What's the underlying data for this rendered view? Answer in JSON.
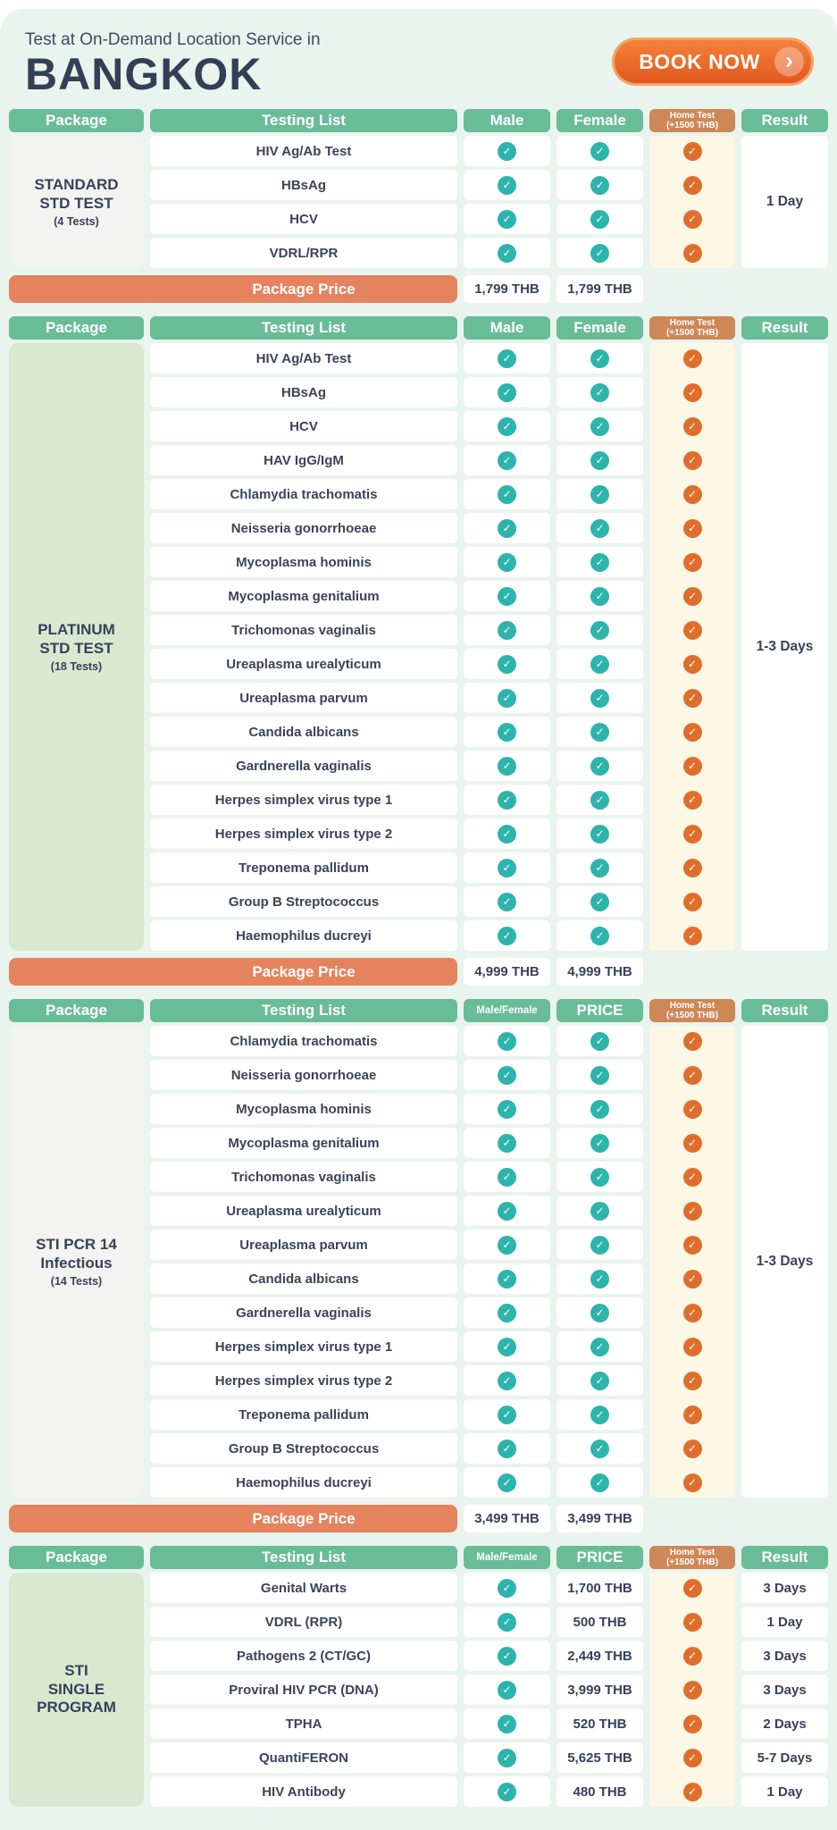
{
  "page": {
    "subtitle": "Test at On-Demand Location Service in",
    "city": "BANGKOK",
    "book_now": "BOOK NOW",
    "chevron_glyph": "›",
    "check_glyph": "✓",
    "colors": {
      "card_mint": "#E8F4ED",
      "header_green": "#69BC98",
      "home_header_orange": "#CE8756",
      "home_column_cream": "#FCF8E5",
      "check_teal": "#2DB4AC",
      "check_orange": "#DF6E2D",
      "price_bar_orange": "#E5835F",
      "package_gray": "#F3F4F1",
      "package_green": "#D9E9D0",
      "button_orange_top": "#F4823A",
      "button_orange_bottom": "#E2571F",
      "button_ring": "#F5A368",
      "text_dark": "#36415A"
    }
  },
  "tables": [
    {
      "id": "standard-std-test",
      "package": {
        "lines": [
          "STANDARD",
          "STD TEST"
        ],
        "count": "(4 Tests)",
        "style": "gray"
      },
      "headers": {
        "package": "Package",
        "testing": "Testing List",
        "col3": "Male",
        "col4": "Female",
        "home1": "Home Test",
        "home2": "(+1500 THB)",
        "result": "Result"
      },
      "col3_small": false,
      "col4_mode": "check",
      "result_mode": "merged",
      "result": "1 Day",
      "rows": [
        {
          "test": "HIV Ag/Ab Test"
        },
        {
          "test": "HBsAg"
        },
        {
          "test": "HCV"
        },
        {
          "test": "VDRL/RPR"
        }
      ],
      "price_row": {
        "label": "Package Price",
        "values": [
          "1,799 THB",
          "1,799 THB"
        ]
      }
    },
    {
      "id": "platinum-std-test",
      "package": {
        "lines": [
          "PLATINUM",
          "STD TEST"
        ],
        "count": "(18 Tests)",
        "style": "green"
      },
      "headers": {
        "package": "Package",
        "testing": "Testing List",
        "col3": "Male",
        "col4": "Female",
        "home1": "Home Test",
        "home2": "(+1500 THB)",
        "result": "Result"
      },
      "col3_small": false,
      "col4_mode": "check",
      "result_mode": "merged",
      "result": "1-3 Days",
      "rows": [
        {
          "test": "HIV Ag/Ab Test"
        },
        {
          "test": "HBsAg"
        },
        {
          "test": "HCV"
        },
        {
          "test": "HAV IgG/IgM"
        },
        {
          "test": "Chlamydia trachomatis"
        },
        {
          "test": "Neisseria gonorrhoeae"
        },
        {
          "test": "Mycoplasma hominis"
        },
        {
          "test": "Mycoplasma genitalium"
        },
        {
          "test": "Trichomonas vaginalis"
        },
        {
          "test": "Ureaplasma urealyticum"
        },
        {
          "test": "Ureaplasma parvum"
        },
        {
          "test": "Candida albicans"
        },
        {
          "test": "Gardnerella vaginalis"
        },
        {
          "test": "Herpes simplex virus type 1"
        },
        {
          "test": "Herpes simplex virus type 2"
        },
        {
          "test": "Treponema pallidum"
        },
        {
          "test": "Group B Streptococcus"
        },
        {
          "test": "Haemophilus ducreyi"
        }
      ],
      "price_row": {
        "label": "Package Price",
        "values": [
          "4,999 THB",
          "4,999 THB"
        ]
      }
    },
    {
      "id": "sti-pcr-14-infectious",
      "package": {
        "lines": [
          "STI PCR 14",
          "Infectious"
        ],
        "count": "(14 Tests)",
        "style": "gray"
      },
      "headers": {
        "package": "Package",
        "testing": "Testing List",
        "col3": "Male/Female",
        "col4": "PRICE",
        "home1": "Home Test",
        "home2": "(+1500 THB)",
        "result": "Result"
      },
      "col3_small": true,
      "col4_mode": "check",
      "result_mode": "merged",
      "result": "1-3 Days",
      "rows": [
        {
          "test": "Chlamydia trachomatis"
        },
        {
          "test": "Neisseria gonorrhoeae"
        },
        {
          "test": "Mycoplasma hominis"
        },
        {
          "test": "Mycoplasma genitalium"
        },
        {
          "test": "Trichomonas vaginalis"
        },
        {
          "test": "Ureaplasma urealyticum"
        },
        {
          "test": "Ureaplasma parvum"
        },
        {
          "test": "Candida albicans"
        },
        {
          "test": "Gardnerella vaginalis"
        },
        {
          "test": "Herpes simplex virus type 1"
        },
        {
          "test": "Herpes simplex virus type 2"
        },
        {
          "test": "Treponema pallidum"
        },
        {
          "test": "Group B Streptococcus"
        },
        {
          "test": "Haemophilus ducreyi"
        }
      ],
      "price_row": {
        "label": "Package Price",
        "values": [
          "3,499 THB",
          "3,499 THB"
        ]
      }
    },
    {
      "id": "sti-single-program",
      "package": {
        "lines": [
          "STI",
          "SINGLE",
          "PROGRAM"
        ],
        "count": null,
        "style": "green"
      },
      "headers": {
        "package": "Package",
        "testing": "Testing List",
        "col3": "Male/Female",
        "col4": "PRICE",
        "home1": "Home Test",
        "home2": "(+1500 THB)",
        "result": "Result"
      },
      "col3_small": true,
      "col4_mode": "price",
      "result_mode": "per-row",
      "result": null,
      "rows": [
        {
          "test": "Genital Warts",
          "price": "1,700 THB",
          "result": "3 Days"
        },
        {
          "test": "VDRL (RPR)",
          "price": "500 THB",
          "result": "1 Day"
        },
        {
          "test": "Pathogens 2 (CT/GC)",
          "price": "2,449 THB",
          "result": "3 Days"
        },
        {
          "test": "Proviral HIV PCR (DNA)",
          "price": "3,999 THB",
          "result": "3 Days"
        },
        {
          "test": "TPHA",
          "price": "520 THB",
          "result": "2 Days"
        },
        {
          "test": "QuantiFERON",
          "price": "5,625 THB",
          "result": "5-7 Days"
        },
        {
          "test": "HIV Antibody",
          "price": "480 THB",
          "result": "1 Day"
        }
      ],
      "price_row": null
    }
  ]
}
